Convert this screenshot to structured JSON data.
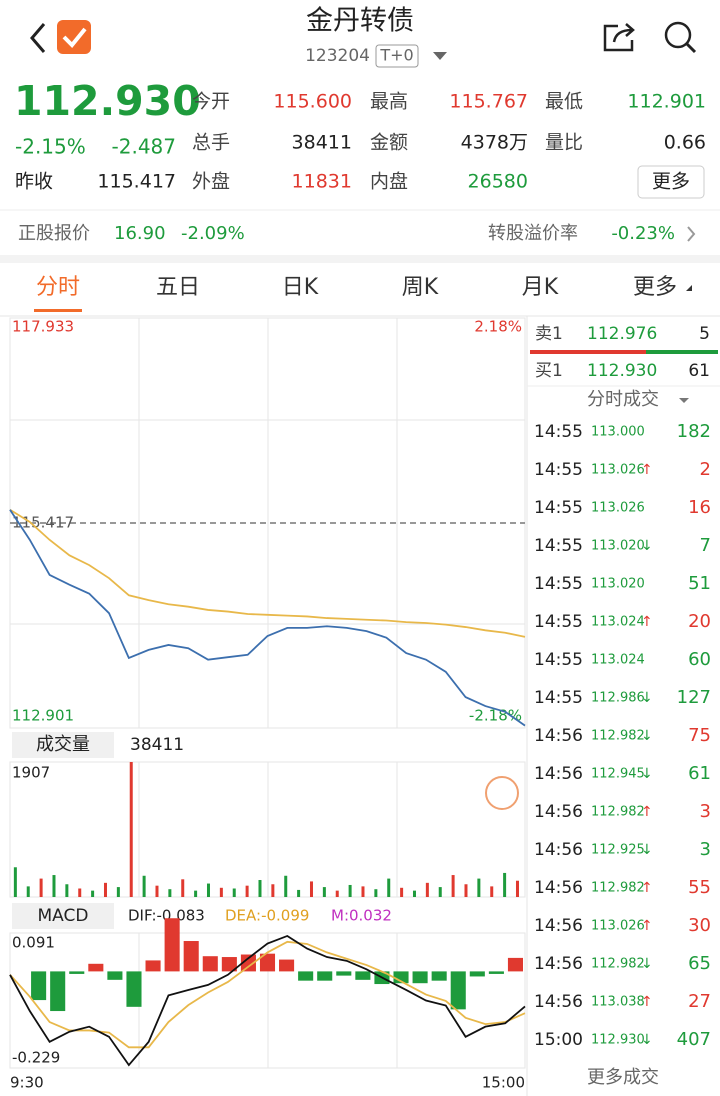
{
  "header": {
    "title": "金丹转债",
    "code": "123204",
    "tag": "T+0"
  },
  "quote": {
    "price": "112.930",
    "change_pct": "-2.15%",
    "change": "-2.487",
    "prev_close_label": "昨收",
    "prev_close": "115.417",
    "stats": [
      {
        "label": "今开",
        "value": "115.600",
        "color": "#e0392f"
      },
      {
        "label": "最高",
        "value": "115.767",
        "color": "#e0392f"
      },
      {
        "label": "最低",
        "value": "112.901",
        "color": "#1e9b3c"
      },
      {
        "label": "总手",
        "value": "38411",
        "color": "#222222"
      },
      {
        "label": "金额",
        "value": "4378万",
        "color": "#222222"
      },
      {
        "label": "量比",
        "value": "0.66",
        "color": "#222222"
      },
      {
        "label": "外盘",
        "value": "11831",
        "color": "#e0392f"
      },
      {
        "label": "内盘",
        "value": "26580",
        "color": "#1e9b3c"
      }
    ],
    "more": "更多"
  },
  "stock_row": {
    "label": "正股报价",
    "price": "16.90",
    "change_pct": "-2.09%",
    "premium_label": "转股溢价率",
    "premium": "-0.23%"
  },
  "tabs": [
    "分时",
    "五日",
    "日K",
    "周K",
    "月K",
    "更多"
  ],
  "intraday": {
    "ylim": [
      112.901,
      117.933
    ],
    "top_right": "2.18%",
    "bottom_right": "-2.18%",
    "pre_close": 115.417,
    "x_labels": [
      "9:30",
      "15:00"
    ],
    "price": {
      "color": "#3c6fae",
      "values": [
        115.58,
        115.21,
        114.78,
        114.66,
        114.55,
        114.31,
        113.76,
        113.86,
        113.92,
        113.88,
        113.74,
        113.77,
        113.8,
        114.03,
        114.13,
        114.13,
        114.15,
        114.13,
        114.09,
        114.01,
        113.82,
        113.74,
        113.59,
        113.28,
        113.17,
        113.1,
        112.93
      ]
    },
    "average": {
      "color": "#e8b84a",
      "values": [
        115.58,
        115.43,
        115.21,
        115.02,
        114.9,
        114.74,
        114.53,
        114.47,
        114.42,
        114.39,
        114.35,
        114.33,
        114.3,
        114.29,
        114.28,
        114.27,
        114.25,
        114.24,
        114.23,
        114.22,
        114.2,
        114.19,
        114.17,
        114.14,
        114.1,
        114.07,
        114.02
      ]
    }
  },
  "volume": {
    "label": "成交量",
    "total": 38411,
    "ylim": [
      0,
      1907
    ],
    "values": [
      420,
      150,
      260,
      310,
      180,
      120,
      90,
      200,
      140,
      1907,
      300,
      160,
      110,
      250,
      90,
      190,
      130,
      120,
      160,
      240,
      180,
      300,
      100,
      220,
      140,
      90,
      170,
      150,
      110,
      260,
      130,
      90,
      200,
      140,
      310,
      180,
      260,
      150,
      340,
      230
    ],
    "colors": [
      "#1e9b3c",
      "#1e9b3c",
      "#e0392f",
      "#1e9b3c",
      "#1e9b3c",
      "#e0392f",
      "#1e9b3c",
      "#e0392f",
      "#1e9b3c",
      "#e0392f",
      "#1e9b3c",
      "#e0392f",
      "#1e9b3c",
      "#e0392f",
      "#1e9b3c",
      "#1e9b3c",
      "#e0392f",
      "#1e9b3c",
      "#e0392f",
      "#1e9b3c",
      "#e0392f",
      "#1e9b3c",
      "#1e9b3c",
      "#e0392f",
      "#1e9b3c",
      "#e0392f",
      "#1e9b3c",
      "#e0392f",
      "#1e9b3c",
      "#1e9b3c",
      "#e0392f",
      "#1e9b3c",
      "#e0392f",
      "#1e9b3c",
      "#e0392f",
      "#e0392f",
      "#1e9b3c",
      "#e0392f",
      "#1e9b3c",
      "#e0392f"
    ]
  },
  "macd": {
    "label": "MACD",
    "dif_label": "DIF:-0.083",
    "dea_label": "DEA:-0.099",
    "m_label": "M:0.032",
    "ylim": [
      -0.229,
      0.091
    ],
    "dif": {
      "color": "#111111",
      "values": [
        -0.008,
        -0.094,
        -0.167,
        -0.143,
        -0.131,
        -0.155,
        -0.222,
        -0.167,
        -0.057,
        -0.044,
        -0.032,
        -0.008,
        0.03,
        0.066,
        0.084,
        0.054,
        0.034,
        0.025,
        0.005,
        -0.02,
        -0.044,
        -0.069,
        -0.081,
        -0.155,
        -0.131,
        -0.123,
        -0.083
      ]
    },
    "dea": {
      "color": "#e8b84a",
      "values": [
        -0.008,
        -0.06,
        -0.12,
        -0.14,
        -0.14,
        -0.145,
        -0.18,
        -0.18,
        -0.12,
        -0.08,
        -0.05,
        -0.025,
        0.01,
        0.045,
        0.07,
        0.065,
        0.045,
        0.03,
        0.015,
        -0.005,
        -0.03,
        -0.055,
        -0.07,
        -0.11,
        -0.125,
        -0.12,
        -0.099
      ]
    },
    "m": {
      "up_color": "#e0392f",
      "down_color": "#1e9b3c",
      "values": [
        0,
        -0.068,
        -0.094,
        -0.006,
        0.018,
        -0.02,
        -0.084,
        0.026,
        0.126,
        0.072,
        0.036,
        0.034,
        0.04,
        0.042,
        0.028,
        -0.022,
        -0.022,
        -0.01,
        -0.02,
        -0.03,
        -0.028,
        -0.028,
        -0.022,
        -0.09,
        -0.012,
        -0.006,
        0.032
      ]
    }
  },
  "order_book": {
    "ask": {
      "label": "卖1",
      "price": "112.976",
      "volume": 5
    },
    "bid": {
      "label": "买1",
      "price": "112.930",
      "volume": 61
    }
  },
  "trades": {
    "title": "分时成交",
    "more": "更多成交",
    "rows": [
      {
        "time": "14:55",
        "price": "113.000",
        "volume": 182,
        "color": "#1e9b3c"
      },
      {
        "time": "14:55",
        "price": "113.026",
        "arrow": {
          "text": "↑",
          "color": "#e0392f"
        },
        "volume": 2,
        "color": "#e0392f"
      },
      {
        "time": "14:55",
        "price": "113.026",
        "volume": 16,
        "color": "#e0392f"
      },
      {
        "time": "14:55",
        "price": "113.020",
        "arrow": {
          "text": "↓",
          "color": "#1e9b3c"
        },
        "volume": 7,
        "color": "#1e9b3c"
      },
      {
        "time": "14:55",
        "price": "113.020",
        "volume": 51,
        "color": "#1e9b3c"
      },
      {
        "time": "14:55",
        "price": "113.024",
        "arrow": {
          "text": "↑",
          "color": "#e0392f"
        },
        "volume": 20,
        "color": "#e0392f"
      },
      {
        "time": "14:55",
        "price": "113.024",
        "volume": 60,
        "color": "#1e9b3c"
      },
      {
        "time": "14:55",
        "price": "112.986",
        "arrow": {
          "text": "↓",
          "color": "#1e9b3c"
        },
        "volume": 127,
        "color": "#1e9b3c"
      },
      {
        "time": "14:56",
        "price": "112.982",
        "arrow": {
          "text": "↓",
          "color": "#1e9b3c"
        },
        "volume": 75,
        "color": "#e0392f"
      },
      {
        "time": "14:56",
        "price": "112.945",
        "arrow": {
          "text": "↓",
          "color": "#1e9b3c"
        },
        "volume": 61,
        "color": "#1e9b3c"
      },
      {
        "time": "14:56",
        "price": "112.982",
        "arrow": {
          "text": "↑",
          "color": "#e0392f"
        },
        "volume": 3,
        "color": "#e0392f"
      },
      {
        "time": "14:56",
        "price": "112.925",
        "arrow": {
          "text": "↓",
          "color": "#1e9b3c"
        },
        "volume": 3,
        "color": "#1e9b3c"
      },
      {
        "time": "14:56",
        "price": "112.982",
        "arrow": {
          "text": "↑",
          "color": "#e0392f"
        },
        "volume": 55,
        "color": "#e0392f"
      },
      {
        "time": "14:56",
        "price": "113.026",
        "arrow": {
          "text": "↑",
          "color": "#e0392f"
        },
        "volume": 30,
        "color": "#e0392f"
      },
      {
        "time": "14:56",
        "price": "112.982",
        "arrow": {
          "text": "↓",
          "color": "#1e9b3c"
        },
        "volume": 65,
        "color": "#1e9b3c"
      },
      {
        "time": "14:56",
        "price": "113.038",
        "arrow": {
          "text": "↑",
          "color": "#e0392f"
        },
        "volume": 27,
        "color": "#e0392f"
      },
      {
        "time": "15:00",
        "price": "112.930",
        "arrow": {
          "text": "↓",
          "color": "#1e9b3c"
        },
        "volume": 407,
        "color": "#1e9b3c"
      }
    ]
  }
}
